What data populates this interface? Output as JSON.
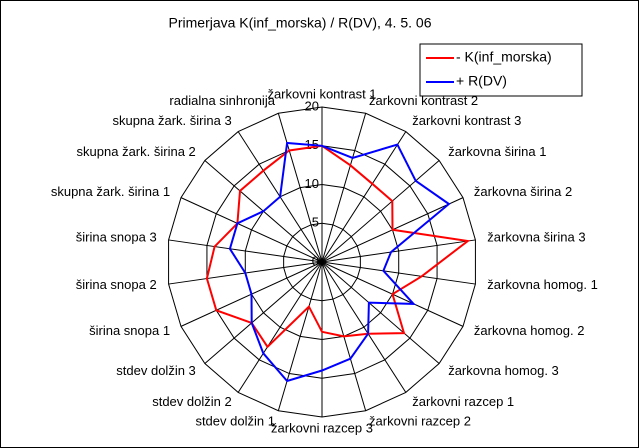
{
  "chart_data": {
    "type": "radar",
    "title": "Primerjava K(inf_morska) / R(DV), 4. 5. 06",
    "categories": [
      "žarkovni kontrast 1",
      "žarkovni kontrast 2",
      "žarkovni kontrast 3",
      "žarkovna širina 1",
      "žarkovna širina 2",
      "žarkovna širina 3",
      "žarkovna homog. 1",
      "žarkovna homog. 2",
      "žarkovna homog. 3",
      "žarkovni razcep 1",
      "žarkovni razcep 2",
      "žarkovni razcep 3",
      "stdev dolžin 1",
      "stdev dolžin 2",
      "stdev dolžin 3",
      "širina snopa 1",
      "širina snopa 2",
      "širina snopa 3",
      "skupna žark. širina 1",
      "skupna žark. širina 2",
      "skupna žark. širina 3",
      "radialna sinhronija"
    ],
    "series": [
      {
        "name": "- K(inf_morska)",
        "color": "#ff0000",
        "values": [
          15,
          13,
          12,
          12,
          10,
          19,
          13,
          10,
          14,
          11,
          10,
          9,
          6,
          13,
          12,
          15,
          15,
          14,
          12,
          14,
          14,
          15
        ]
      },
      {
        "name": "+ R(DV)",
        "color": "#0000ff",
        "values": [
          15,
          14,
          18,
          16,
          18,
          9,
          8,
          13,
          8,
          11,
          13,
          14,
          16,
          14,
          12,
          10,
          10,
          12,
          12,
          10,
          10,
          16
        ]
      }
    ],
    "ylim": [
      0,
      20
    ],
    "yticks": [
      0,
      5,
      10,
      15,
      20
    ],
    "grid": true,
    "legend": "top-right"
  }
}
